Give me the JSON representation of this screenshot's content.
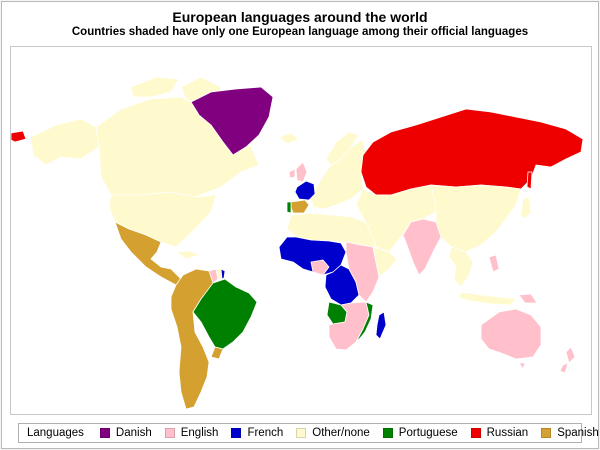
{
  "title": "European languages around the world",
  "subtitle": "Countries shaded have only one European language among their official languages",
  "legend": {
    "heading": "Languages",
    "items": [
      {
        "label": "Danish",
        "color": "#800080"
      },
      {
        "label": "English",
        "color": "#ffc0cb"
      },
      {
        "label": "French",
        "color": "#0000cc"
      },
      {
        "label": "Other/none",
        "color": "#fffacd"
      },
      {
        "label": "Portuguese",
        "color": "#008000"
      },
      {
        "label": "Russian",
        "color": "#ee0000"
      },
      {
        "label": "Spanish",
        "color": "#d4a030"
      }
    ]
  },
  "map_data": {
    "regions": [
      {
        "name": "Greenland",
        "language": "Danish"
      },
      {
        "name": "Russia",
        "language": "Russian"
      },
      {
        "name": "France",
        "language": "French"
      },
      {
        "name": "West & Central Africa (Francophone)",
        "language": "French"
      },
      {
        "name": "Madagascar",
        "language": "French"
      },
      {
        "name": "French Guiana",
        "language": "French"
      },
      {
        "name": "Spain",
        "language": "Spanish"
      },
      {
        "name": "Mexico & Central America",
        "language": "Spanish"
      },
      {
        "name": "Spanish-speaking South America",
        "language": "Spanish"
      },
      {
        "name": "Brazil",
        "language": "Portuguese"
      },
      {
        "name": "Angola",
        "language": "Portuguese"
      },
      {
        "name": "Mozambique",
        "language": "Portuguese"
      },
      {
        "name": "Portugal",
        "language": "Portuguese"
      },
      {
        "name": "United Kingdom & Ireland",
        "language": "English"
      },
      {
        "name": "India",
        "language": "English"
      },
      {
        "name": "Australia",
        "language": "English"
      },
      {
        "name": "New Zealand",
        "language": "English"
      },
      {
        "name": "East & Southern Africa (Anglophone)",
        "language": "English"
      },
      {
        "name": "Guyana",
        "language": "English"
      },
      {
        "name": "Canada",
        "language": "Other/none"
      },
      {
        "name": "United States",
        "language": "Other/none"
      },
      {
        "name": "Europe (rest)",
        "language": "Other/none"
      },
      {
        "name": "Asia (rest)",
        "language": "Other/none"
      },
      {
        "name": "North Africa & Middle East",
        "language": "Other/none"
      }
    ]
  }
}
